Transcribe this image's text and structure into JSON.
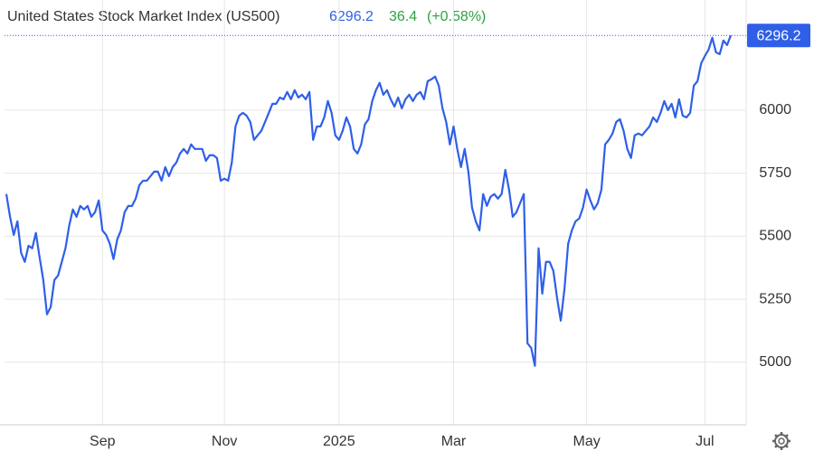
{
  "chart_data": {
    "type": "line",
    "title": "United States Stock Market Index (US500)",
    "price": 6296.2,
    "change": 36.4,
    "change_percent": {
      "value": 0.58,
      "label": "(+0.58%)"
    },
    "price_color": "#2f5fe8",
    "change_color": "#2ea043",
    "categories": [
      null,
      null,
      null,
      null,
      null,
      null,
      null,
      null,
      null,
      null,
      null,
      null,
      null,
      null,
      null,
      null,
      null,
      null,
      null,
      null,
      null,
      null,
      null,
      null,
      null,
      null,
      "Sep",
      null,
      null,
      null,
      null,
      null,
      null,
      null,
      null,
      null,
      null,
      null,
      null,
      null,
      null,
      null,
      null,
      null,
      null,
      null,
      null,
      null,
      null,
      null,
      null,
      null,
      null,
      null,
      null,
      null,
      null,
      null,
      null,
      "Nov",
      null,
      null,
      null,
      null,
      null,
      null,
      null,
      null,
      null,
      null,
      null,
      null,
      null,
      null,
      null,
      null,
      null,
      null,
      null,
      null,
      null,
      null,
      null,
      null,
      null,
      null,
      null,
      null,
      null,
      null,
      "2025",
      null,
      null,
      null,
      null,
      null,
      null,
      null,
      null,
      null,
      null,
      null,
      null,
      null,
      null,
      null,
      null,
      null,
      null,
      null,
      null,
      null,
      null,
      null,
      null,
      null,
      null,
      null,
      null,
      null,
      null,
      "Mar",
      null,
      null,
      null,
      null,
      null,
      null,
      null,
      null,
      null,
      null,
      null,
      null,
      null,
      null,
      null,
      null,
      null,
      null,
      null,
      null,
      null,
      null,
      null,
      null,
      null,
      null,
      null,
      null,
      null,
      null,
      null,
      null,
      null,
      null,
      null,
      "May",
      null,
      null,
      null,
      null,
      null,
      null,
      null,
      null,
      null,
      null,
      null,
      null,
      null,
      null,
      null,
      null,
      null,
      null,
      null,
      null,
      null,
      null,
      null,
      null,
      null,
      null,
      null,
      null,
      null,
      null,
      null,
      "Jul",
      null,
      null,
      null,
      null,
      null,
      null,
      null
    ],
    "series": [
      {
        "name": "US500",
        "color": "#2f5fe8",
        "values": [
          5667,
          5577,
          5505,
          5559,
          5434,
          5398,
          5462,
          5452,
          5513,
          5416,
          5326,
          5190,
          5219,
          5326,
          5344,
          5398,
          5452,
          5541,
          5606,
          5577,
          5620,
          5606,
          5620,
          5577,
          5595,
          5642,
          5523,
          5505,
          5470,
          5409,
          5487,
          5523,
          5595,
          5620,
          5620,
          5649,
          5703,
          5720,
          5720,
          5738,
          5756,
          5756,
          5720,
          5774,
          5738,
          5774,
          5792,
          5828,
          5846,
          5828,
          5864,
          5846,
          5846,
          5846,
          5799,
          5821,
          5821,
          5810,
          5720,
          5728,
          5720,
          5792,
          5935,
          5978,
          5989,
          5978,
          5953,
          5882,
          5900,
          5918,
          5953,
          5989,
          6025,
          6025,
          6050,
          6043,
          6072,
          6043,
          6079,
          6050,
          6061,
          6043,
          6072,
          5882,
          5935,
          5935,
          5971,
          6036,
          5989,
          5900,
          5882,
          5918,
          5971,
          5935,
          5846,
          5828,
          5864,
          5943,
          5964,
          6036,
          6079,
          6108,
          6061,
          6079,
          6043,
          6014,
          6050,
          6007,
          6043,
          6061,
          6036,
          6061,
          6072,
          6043,
          6115,
          6122,
          6133,
          6097,
          6007,
          5953,
          5864,
          5935,
          5846,
          5774,
          5846,
          5756,
          5613,
          5559,
          5523,
          5667,
          5620,
          5656,
          5667,
          5649,
          5667,
          5763,
          5685,
          5577,
          5595,
          5631,
          5667,
          5075,
          5057,
          4986,
          5452,
          5272,
          5398,
          5398,
          5362,
          5255,
          5165,
          5290,
          5470,
          5523,
          5559,
          5570,
          5613,
          5685,
          5642,
          5606,
          5631,
          5685,
          5864,
          5882,
          5907,
          5953,
          5964,
          5918,
          5846,
          5810,
          5900,
          5907,
          5900,
          5918,
          5935,
          5971,
          5953,
          5989,
          6036,
          6000,
          6025,
          5971,
          6043,
          5978,
          5971,
          5989,
          6097,
          6115,
          6186,
          6215,
          6240,
          6287,
          6229,
          6222,
          6276,
          6258,
          6296.2
        ]
      }
    ],
    "ylim": [
      4752,
      6365
    ],
    "yticks": [
      5000,
      5250,
      5500,
      5750,
      6000
    ],
    "grid": true
  }
}
